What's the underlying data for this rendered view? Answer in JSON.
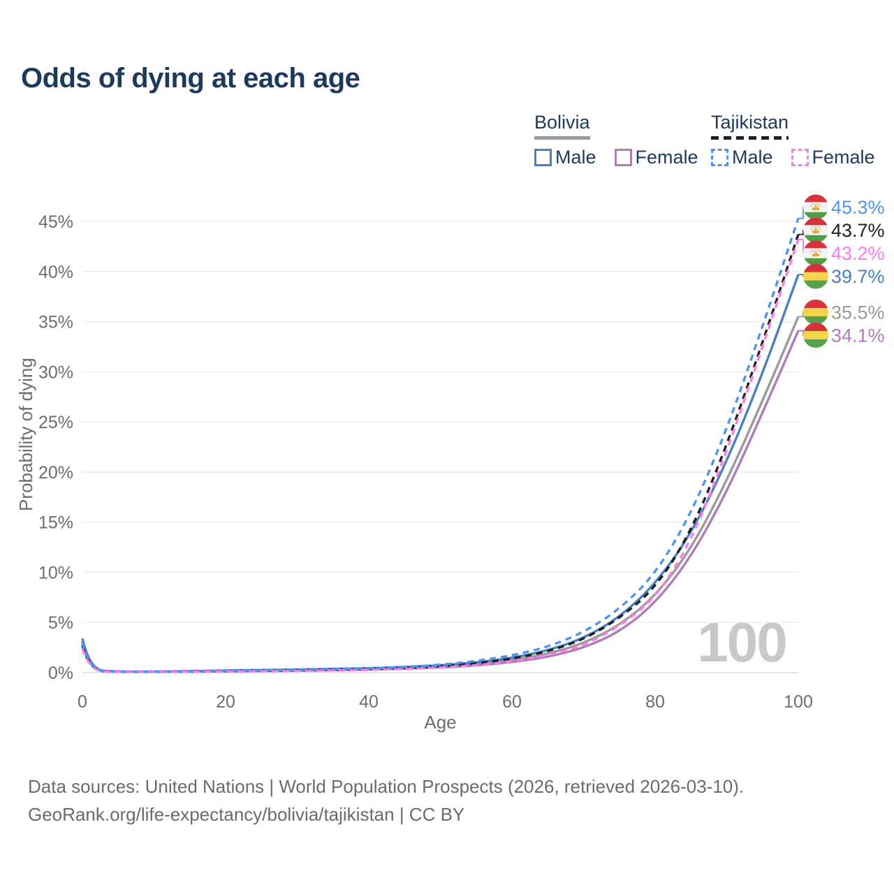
{
  "title": "Odds of dying at each age",
  "legend": {
    "groups": [
      {
        "name": "Bolivia",
        "line_style": "solid",
        "line_color": "#9a9a9a",
        "items": [
          {
            "label": "Male",
            "color": "#4a7fc1",
            "dashed": false
          },
          {
            "label": "Female",
            "color": "#ae7cb8",
            "dashed": false
          }
        ]
      },
      {
        "name": "Tajikistan",
        "line_style": "dashed",
        "line_color": "#1f1f1f",
        "items": [
          {
            "label": "Male",
            "color": "#4d94f3",
            "dashed": true
          },
          {
            "label": "Female",
            "color": "#fb7ce8",
            "dashed": true
          }
        ]
      }
    ]
  },
  "chart_data": {
    "type": "line",
    "title": "Odds of dying at each age",
    "xlabel": "Age",
    "ylabel": "Probability of dying",
    "xlim": [
      0,
      100
    ],
    "ylim": [
      0,
      47
    ],
    "x_ticks": [
      0,
      20,
      40,
      60,
      80,
      100
    ],
    "y_tick_labels": [
      "0%",
      "5%",
      "10%",
      "15%",
      "20%",
      "25%",
      "30%",
      "35%",
      "40%",
      "45%"
    ],
    "grid": "horizontal",
    "legend_position": "top-right",
    "age_annotation": "100",
    "ages": [
      0,
      1,
      5,
      10,
      15,
      20,
      25,
      30,
      35,
      40,
      45,
      50,
      55,
      60,
      65,
      70,
      75,
      80,
      85,
      90,
      95,
      100
    ],
    "series": [
      {
        "name": "Tajikistan Male",
        "country": "tajikistan",
        "sex": "male",
        "color": "#4d94f3",
        "dashed": true,
        "end_label": "45.3%",
        "values": [
          3.0,
          0.2,
          0.08,
          0.08,
          0.12,
          0.18,
          0.22,
          0.28,
          0.34,
          0.42,
          0.55,
          0.78,
          1.15,
          1.7,
          2.55,
          4.0,
          6.3,
          9.8,
          15.8,
          24.2,
          34.5,
          45.3
        ]
      },
      {
        "name": "Tajikistan",
        "country": "tajikistan",
        "sex": "both",
        "color": "#1f1f1f",
        "dashed": true,
        "end_label": "43.7%",
        "values": [
          2.7,
          0.18,
          0.07,
          0.07,
          0.1,
          0.14,
          0.18,
          0.22,
          0.27,
          0.34,
          0.45,
          0.63,
          0.92,
          1.38,
          2.1,
          3.3,
          5.4,
          8.4,
          14.0,
          22.6,
          32.9,
          43.7
        ]
      },
      {
        "name": "Tajikistan Female",
        "country": "tajikistan",
        "sex": "female",
        "color": "#fb7ce8",
        "dashed": true,
        "end_label": "43.2%",
        "values": [
          2.4,
          0.16,
          0.06,
          0.06,
          0.08,
          0.11,
          0.14,
          0.17,
          0.21,
          0.27,
          0.36,
          0.5,
          0.73,
          1.1,
          1.7,
          2.7,
          4.6,
          7.4,
          13.0,
          22.0,
          32.5,
          43.2
        ]
      },
      {
        "name": "Bolivia Male",
        "country": "bolivia",
        "sex": "male",
        "color": "#4a7fc1",
        "dashed": false,
        "end_label": "39.7%",
        "values": [
          3.4,
          0.26,
          0.1,
          0.1,
          0.15,
          0.21,
          0.26,
          0.31,
          0.37,
          0.44,
          0.55,
          0.72,
          1.0,
          1.45,
          2.2,
          3.4,
          5.5,
          8.8,
          13.8,
          21.0,
          29.8,
          39.7
        ]
      },
      {
        "name": "Bolivia",
        "country": "bolivia",
        "sex": "both",
        "color": "#9a9a9a",
        "dashed": false,
        "end_label": "35.5%",
        "values": [
          3.1,
          0.23,
          0.09,
          0.09,
          0.13,
          0.17,
          0.21,
          0.26,
          0.31,
          0.37,
          0.46,
          0.6,
          0.84,
          1.22,
          1.85,
          2.9,
          4.7,
          7.6,
          12.3,
          19.1,
          27.1,
          35.5
        ]
      },
      {
        "name": "Bolivia Female",
        "country": "bolivia",
        "sex": "female",
        "color": "#ae7cb8",
        "dashed": false,
        "end_label": "34.1%",
        "values": [
          2.8,
          0.2,
          0.08,
          0.08,
          0.1,
          0.13,
          0.16,
          0.2,
          0.25,
          0.31,
          0.39,
          0.51,
          0.71,
          1.03,
          1.55,
          2.45,
          4.05,
          6.9,
          11.5,
          18.0,
          25.9,
          34.1
        ]
      }
    ],
    "flag_colors": {
      "bolivia": [
        "#d6323e",
        "#f6d44c",
        "#57a14c"
      ],
      "tajikistan": [
        "#d6323e",
        "#f2f2f2",
        "#4f9e45"
      ],
      "tajikistan_crown": "#e8aa3c"
    }
  },
  "footer": {
    "line1": "Data sources: United Nations | World Population Prospects (2026, retrieved 2026-03-10).",
    "line2": "GeoRank.org/life-expectancy/bolivia/tajikistan | CC BY"
  }
}
